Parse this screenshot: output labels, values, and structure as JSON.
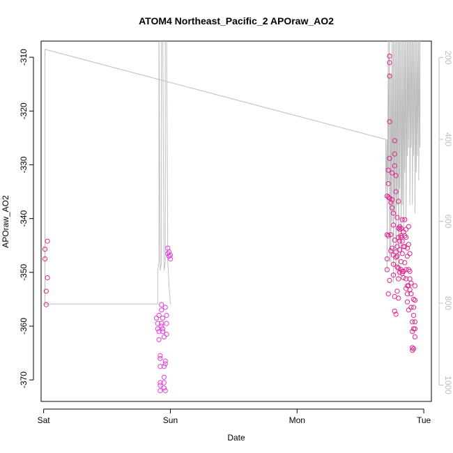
{
  "chart_data": {
    "type": "scatter",
    "title": "ATOM4 Northeast_Pacific_2 APOraw_AO2",
    "xlabel": "Date",
    "ylabel": "APOraw_AO2",
    "x_tick_labels": [
      "Sat",
      "Sun",
      "Mon",
      "Tue"
    ],
    "x_range_days": [
      -0.02,
      3.06
    ],
    "y_ticks": [
      -310,
      -320,
      -330,
      -340,
      -350,
      -360,
      -370
    ],
    "ylim": [
      -374,
      -307
    ],
    "y2_ticks": [
      200,
      400,
      600,
      800,
      1000
    ],
    "y2lim": [
      1040,
      160
    ],
    "grid": false,
    "colors": {
      "points": "#e0228c",
      "points_alt": "#e23dd8",
      "secondary": "#bebebe"
    },
    "series": [
      {
        "role": "points",
        "marker": "open-circle",
        "points": [
          [
            0.01,
            -345.7
          ],
          [
            0.01,
            -347.5
          ],
          [
            0.02,
            -353.5
          ],
          [
            0.02,
            -356.0
          ],
          [
            0.03,
            -351.0
          ],
          [
            0.03,
            -344.2
          ],
          [
            0.89,
            -358.5
          ],
          [
            0.9,
            -359.5
          ],
          [
            0.9,
            -360.5
          ],
          [
            0.91,
            -361.0
          ],
          [
            0.91,
            -362.5
          ],
          [
            0.91,
            -358.0
          ],
          [
            0.92,
            -365.5
          ],
          [
            0.92,
            -366.0
          ],
          [
            0.92,
            -367.5
          ],
          [
            0.92,
            -370.5
          ],
          [
            0.92,
            -371.0
          ],
          [
            0.92,
            -372.0
          ],
          [
            0.93,
            -356.0
          ],
          [
            0.93,
            -357.0
          ],
          [
            0.93,
            -359.5
          ],
          [
            0.93,
            -360.0
          ],
          [
            0.94,
            -360.5
          ],
          [
            0.94,
            -361.0
          ],
          [
            0.94,
            -358.5
          ],
          [
            0.95,
            -362.0
          ],
          [
            0.95,
            -367.5
          ],
          [
            0.95,
            -369.5
          ],
          [
            0.95,
            -370.5
          ],
          [
            0.95,
            -371.5
          ],
          [
            0.96,
            -372.0
          ],
          [
            0.96,
            -366.5
          ],
          [
            0.96,
            -367.0
          ],
          [
            0.96,
            -356.5
          ],
          [
            0.97,
            -358.0
          ],
          [
            0.97,
            -359.5
          ],
          [
            0.97,
            -361.5
          ],
          [
            0.98,
            -345.5
          ],
          [
            0.98,
            -346.5
          ],
          [
            0.99,
            -347.0
          ],
          [
            0.99,
            -346.2
          ],
          [
            1.0,
            -347.5
          ],
          [
            1.0,
            -346.8
          ],
          [
            2.71,
            -349.5
          ],
          [
            2.71,
            -347.5
          ],
          [
            2.71,
            -335.8
          ],
          [
            2.71,
            -343.0
          ],
          [
            2.72,
            -333.5
          ],
          [
            2.72,
            -331.0
          ],
          [
            2.72,
            -336.0
          ],
          [
            2.72,
            -343.2
          ],
          [
            2.72,
            -354.0
          ],
          [
            2.73,
            -336.2
          ],
          [
            2.73,
            -351.5
          ],
          [
            2.73,
            -309.8
          ],
          [
            2.73,
            -311.0
          ],
          [
            2.73,
            -313.5
          ],
          [
            2.73,
            -322.0
          ],
          [
            2.73,
            -328.8
          ],
          [
            2.74,
            -337.0
          ],
          [
            2.74,
            -343.0
          ],
          [
            2.74,
            -346.0
          ],
          [
            2.75,
            -331.5
          ],
          [
            2.75,
            -336.5
          ],
          [
            2.75,
            -345.5
          ],
          [
            2.75,
            -338.0
          ],
          [
            2.76,
            -348.5
          ],
          [
            2.76,
            -339.0
          ],
          [
            2.76,
            -341.2
          ],
          [
            2.76,
            -346.8
          ],
          [
            2.76,
            -350.5
          ],
          [
            2.77,
            -357.2
          ],
          [
            2.77,
            -344.0
          ],
          [
            2.77,
            -354.5
          ],
          [
            2.77,
            -328.0
          ],
          [
            2.77,
            -325.5
          ],
          [
            2.77,
            -330.2
          ],
          [
            2.78,
            -335.0
          ],
          [
            2.78,
            -332.0
          ],
          [
            2.78,
            -347.2
          ],
          [
            2.78,
            -357.8
          ],
          [
            2.78,
            -346.2
          ],
          [
            2.79,
            -353.5
          ],
          [
            2.79,
            -349.0
          ],
          [
            2.79,
            -345.2
          ],
          [
            2.79,
            -339.8
          ],
          [
            2.79,
            -347.0
          ],
          [
            2.8,
            -336.8
          ],
          [
            2.8,
            -341.8
          ],
          [
            2.8,
            -343.5
          ],
          [
            2.8,
            -349.2
          ],
          [
            2.8,
            -354.8
          ],
          [
            2.8,
            -351.2
          ],
          [
            2.81,
            -342.0
          ],
          [
            2.81,
            -341.5
          ],
          [
            2.81,
            -344.2
          ],
          [
            2.81,
            -350.0
          ],
          [
            2.81,
            -345.8
          ],
          [
            2.82,
            -343.2
          ],
          [
            2.82,
            -348.0
          ],
          [
            2.82,
            -349.5
          ],
          [
            2.82,
            -343.5
          ],
          [
            2.82,
            -341.8
          ],
          [
            2.83,
            -346.5
          ],
          [
            2.83,
            -349.8
          ],
          [
            2.83,
            -350.2
          ],
          [
            2.83,
            -340.2
          ],
          [
            2.83,
            -344.2
          ],
          [
            2.84,
            -345.2
          ],
          [
            2.84,
            -351.0
          ],
          [
            2.84,
            -342.5
          ],
          [
            2.84,
            -349.8
          ],
          [
            2.85,
            -340.2
          ],
          [
            2.85,
            -343.2
          ],
          [
            2.85,
            -345.2
          ],
          [
            2.85,
            -348.2
          ],
          [
            2.86,
            -349.5
          ],
          [
            2.86,
            -351.2
          ],
          [
            2.86,
            -353.0
          ],
          [
            2.86,
            -342.0
          ],
          [
            2.86,
            -343.5
          ],
          [
            2.87,
            -345.5
          ],
          [
            2.87,
            -347.0
          ],
          [
            2.87,
            -352.5
          ],
          [
            2.87,
            -354.0
          ],
          [
            2.87,
            -355.5
          ],
          [
            2.88,
            -357.0
          ],
          [
            2.88,
            -352.5
          ],
          [
            2.88,
            -349.5
          ],
          [
            2.88,
            -344.8
          ],
          [
            2.88,
            -341.5
          ],
          [
            2.89,
            -346.5
          ],
          [
            2.89,
            -349.8
          ],
          [
            2.89,
            -351.2
          ],
          [
            2.89,
            -353.2
          ],
          [
            2.9,
            -356.5
          ],
          [
            2.9,
            -354.0
          ],
          [
            2.9,
            -352.0
          ],
          [
            2.91,
            -359.2
          ],
          [
            2.91,
            -361.0
          ],
          [
            2.91,
            -364.0
          ],
          [
            2.91,
            -364.5
          ],
          [
            2.92,
            -360.5
          ],
          [
            2.92,
            -355.0
          ],
          [
            2.92,
            -356.5
          ],
          [
            2.92,
            -364.2
          ],
          [
            2.92,
            -358.0
          ],
          [
            2.93,
            -362.0
          ],
          [
            2.93,
            -355.2
          ],
          [
            2.93,
            -352.5
          ],
          [
            2.93,
            -359.2
          ],
          [
            2.93,
            -360.5
          ]
        ]
      },
      {
        "role": "secondary-axis-line",
        "color": "#bebebe",
        "points": [
          [
            0.01,
            750
          ],
          [
            0.01,
            180
          ],
          [
            2.7,
            400
          ],
          [
            2.7,
            430
          ],
          [
            2.7,
            530
          ],
          [
            2.71,
            400
          ],
          [
            2.71,
            720
          ],
          [
            2.72,
            140
          ],
          [
            2.72,
            500
          ],
          [
            2.73,
            140
          ],
          [
            2.73,
            700
          ],
          [
            2.74,
            240
          ],
          [
            2.74,
            700
          ],
          [
            2.75,
            140
          ],
          [
            2.75,
            600
          ],
          [
            2.76,
            140
          ],
          [
            2.76,
            750
          ],
          [
            2.77,
            140
          ],
          [
            2.77,
            580
          ],
          [
            2.78,
            140
          ],
          [
            2.78,
            730
          ],
          [
            2.79,
            140
          ],
          [
            2.79,
            560
          ],
          [
            2.8,
            140
          ],
          [
            2.8,
            740
          ],
          [
            2.81,
            140
          ],
          [
            2.81,
            520
          ],
          [
            2.82,
            140
          ],
          [
            2.82,
            680
          ],
          [
            2.83,
            140
          ],
          [
            2.83,
            560
          ],
          [
            2.84,
            140
          ],
          [
            2.84,
            640
          ],
          [
            2.85,
            140
          ],
          [
            2.85,
            480
          ],
          [
            2.86,
            140
          ],
          [
            2.86,
            600
          ],
          [
            2.87,
            140
          ],
          [
            2.87,
            440
          ],
          [
            2.88,
            140
          ],
          [
            2.88,
            420
          ],
          [
            2.89,
            140
          ],
          [
            2.89,
            560
          ],
          [
            2.9,
            140
          ],
          [
            2.9,
            420
          ],
          [
            2.91,
            140
          ],
          [
            2.91,
            560
          ],
          [
            2.92,
            140
          ],
          [
            2.92,
            440
          ],
          [
            2.93,
            140
          ],
          [
            2.93,
            580
          ],
          [
            2.94,
            140
          ],
          [
            2.94,
            480
          ],
          [
            2.95,
            140
          ],
          [
            2.95,
            440
          ],
          [
            2.96,
            140
          ],
          [
            2.96,
            500
          ],
          [
            2.97,
            140
          ],
          [
            2.97,
            420
          ]
        ]
      },
      {
        "role": "secondary-axis-line-2",
        "color": "#bebebe",
        "points": [
          [
            0.01,
            750
          ],
          [
            0.01,
            180
          ],
          [
            0.01,
            802
          ],
          [
            0.9,
            802
          ],
          [
            0.9,
            720
          ],
          [
            0.91,
            700
          ],
          [
            0.91,
            140
          ],
          [
            0.92,
            720
          ],
          [
            0.93,
            700
          ],
          [
            0.93,
            140
          ],
          [
            0.94,
            140
          ],
          [
            0.95,
            720
          ],
          [
            0.96,
            700
          ],
          [
            0.96,
            140
          ],
          [
            0.97,
            140
          ],
          [
            0.98,
            700
          ],
          [
            0.99,
            760
          ],
          [
            1.0,
            800
          ],
          [
            1.0,
            802
          ]
        ]
      }
    ]
  }
}
